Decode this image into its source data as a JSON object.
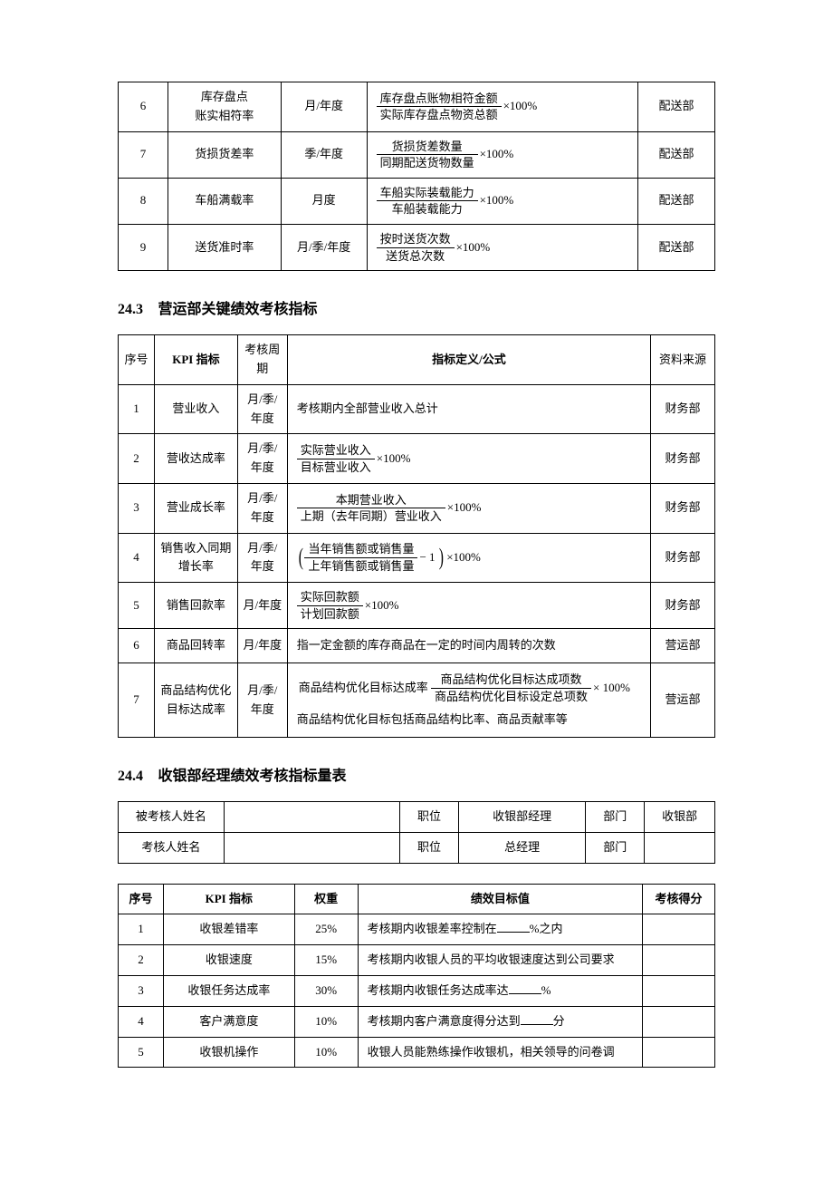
{
  "table1": {
    "rows": [
      {
        "idx": "6",
        "kpi": "库存盘点\n账实相符率",
        "period": "月/年度",
        "num": "库存盘点账物相符金额",
        "den": "实际库存盘点物资总额",
        "suffix": "×100%",
        "source": "配送部"
      },
      {
        "idx": "7",
        "kpi": "货损货差率",
        "period": "季/年度",
        "num": "货损货差数量",
        "den": "同期配送货物数量",
        "suffix": "×100%",
        "source": "配送部"
      },
      {
        "idx": "8",
        "kpi": "车船满载率",
        "period": "月度",
        "num": "车船实际装载能力",
        "den": "车船装载能力",
        "suffix": "×100%",
        "source": "配送部"
      },
      {
        "idx": "9",
        "kpi": "送货准时率",
        "period": "月/季/年度",
        "num": "按时送货次数",
        "den": "送货总次数",
        "suffix": "×100%",
        "source": "配送部"
      }
    ]
  },
  "section243": {
    "num": "24.3",
    "title": "营运部关键绩效考核指标"
  },
  "table2": {
    "headers": {
      "idx": "序号",
      "kpi": "KPI 指标",
      "period": "考核周期",
      "formula": "指标定义/公式",
      "source": "资料来源"
    },
    "row1": {
      "idx": "1",
      "kpi": "营业收入",
      "period": "月/季/年度",
      "formula_text": "考核期内全部营业收入总计",
      "source": "财务部"
    },
    "row2": {
      "idx": "2",
      "kpi": "营收达成率",
      "period": "月/季/年度",
      "num": "实际营业收入",
      "den": "目标营业收入",
      "suffix": "×100%",
      "source": "财务部"
    },
    "row3": {
      "idx": "3",
      "kpi": "营业成长率",
      "period": "月/季/年度",
      "num": "本期营业收入",
      "den": "上期（去年同期）营业收入",
      "suffix": "×100%",
      "source": "财务部"
    },
    "row4": {
      "idx": "4",
      "kpi": "销售收入同期增长率",
      "period": "月/季/年度",
      "num": "当年销售额或销售量",
      "den": "上年销售额或销售量",
      "minus": "− 1",
      "suffix": "×100%",
      "source": "财务部"
    },
    "row5": {
      "idx": "5",
      "kpi": "销售回款率",
      "period": "月/年度",
      "num": "实际回款额",
      "den": "计划回款额",
      "suffix": "×100%",
      "source": "财务部"
    },
    "row6": {
      "idx": "6",
      "kpi": "商品回转率",
      "period": "月/年度",
      "formula_text": "指一定金额的库存商品在一定的时间内周转的次数",
      "source": "营运部"
    },
    "row7": {
      "idx": "7",
      "kpi": "商品结构优化目标达成率",
      "period": "月/季/年度",
      "prefix": "商品结构优化目标达成率",
      "num": "商品结构优化目标达成项数",
      "den": "商品结构优化目标设定总项数",
      "suffix": "× 100%",
      "note": "商品结构优化目标包括商品结构比率、商品贡献率等",
      "source": "营运部"
    }
  },
  "section244": {
    "num": "24.4",
    "title": "收银部经理绩效考核指标量表"
  },
  "table3": {
    "labels": {
      "name_eval": "被考核人姓名",
      "name_reviewer": "考核人姓名",
      "position": "职位",
      "dept": "部门"
    },
    "row1": {
      "name": "",
      "position": "收银部经理",
      "dept_label": "部门",
      "dept": "收银部"
    },
    "row2": {
      "name": "",
      "position": "总经理",
      "dept_label": "部门",
      "dept": ""
    }
  },
  "table4": {
    "headers": {
      "idx": "序号",
      "kpi": "KPI 指标",
      "weight": "权重",
      "goal": "绩效目标值",
      "score": "考核得分"
    },
    "rows": [
      {
        "idx": "1",
        "kpi": "收银差错率",
        "weight": "25%",
        "goal_pre": "考核期内收银差率控制在",
        "goal_post": "%之内"
      },
      {
        "idx": "2",
        "kpi": "收银速度",
        "weight": "15%",
        "goal_pre": "考核期内收银人员的平均收银速度达到公司要求",
        "goal_post": ""
      },
      {
        "idx": "3",
        "kpi": "收银任务达成率",
        "weight": "30%",
        "goal_pre": "考核期内收银任务达成率达",
        "goal_post": "%"
      },
      {
        "idx": "4",
        "kpi": "客户满意度",
        "weight": "10%",
        "goal_pre": "考核期内客户满意度得分达到",
        "goal_post": "分"
      },
      {
        "idx": "5",
        "kpi": "收银机操作",
        "weight": "10%",
        "goal_pre": "收银人员能熟练操作收银机，相关领导的问卷调",
        "goal_post": ""
      }
    ]
  }
}
